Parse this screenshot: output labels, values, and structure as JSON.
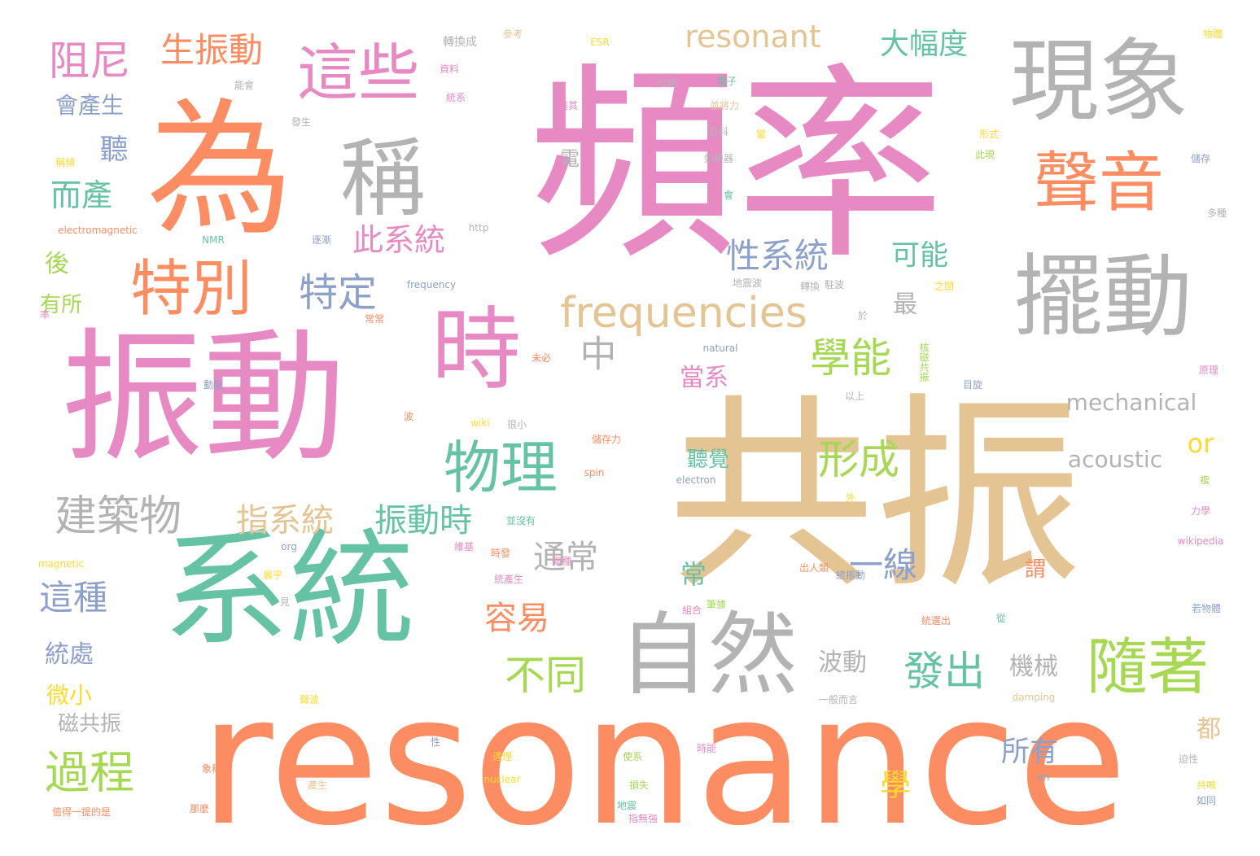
{
  "palette": {
    "pink": "#e78ac3",
    "orange": "#fc8d62",
    "gray": "#b3b3b3",
    "tan": "#e5c494",
    "teal": "#66c2a5",
    "lime": "#a6d854",
    "blue": "#8da0cb",
    "yellow": "#ffd92f"
  },
  "words": [
    {
      "text": "頻率",
      "color": "pink"
    },
    {
      "text": "共振",
      "color": "tan"
    },
    {
      "text": "resonance",
      "color": "orange"
    },
    {
      "text": "振動",
      "color": "pink"
    },
    {
      "text": "系統",
      "color": "teal"
    },
    {
      "text": "為",
      "color": "orange"
    },
    {
      "text": "現象",
      "color": "gray"
    },
    {
      "text": "擺動",
      "color": "gray"
    },
    {
      "text": "自然",
      "color": "gray"
    },
    {
      "text": "時",
      "color": "pink"
    },
    {
      "text": "稱",
      "color": "gray"
    },
    {
      "text": "聲音",
      "color": "orange"
    },
    {
      "text": "這些",
      "color": "pink"
    },
    {
      "text": "隨著",
      "color": "lime"
    },
    {
      "text": "物理",
      "color": "teal"
    },
    {
      "text": "特別",
      "color": "orange"
    },
    {
      "text": "frequencies",
      "color": "tan"
    },
    {
      "text": "建築物",
      "color": "gray"
    },
    {
      "text": "resonant",
      "color": "tan"
    },
    {
      "text": "生振動",
      "color": "orange"
    },
    {
      "text": "阻尼",
      "color": "pink"
    },
    {
      "text": "形成",
      "color": "lime"
    },
    {
      "text": "學能",
      "color": "lime"
    },
    {
      "text": "發出",
      "color": "teal"
    },
    {
      "text": "不同",
      "color": "lime"
    },
    {
      "text": "過程",
      "color": "lime"
    },
    {
      "text": "特定",
      "color": "blue"
    },
    {
      "text": "性系統",
      "color": "blue"
    },
    {
      "text": "指系統",
      "color": "tan"
    },
    {
      "text": "振動時",
      "color": "teal"
    },
    {
      "text": "此系統",
      "color": "pink"
    },
    {
      "text": "大幅度",
      "color": "teal"
    },
    {
      "text": "中",
      "color": "gray"
    },
    {
      "text": "通常",
      "color": "gray"
    },
    {
      "text": "容易",
      "color": "orange"
    },
    {
      "text": "一線",
      "color": "blue"
    },
    {
      "text": "這種",
      "color": "blue"
    },
    {
      "text": "而產",
      "color": "teal"
    },
    {
      "text": "聽",
      "color": "blue"
    },
    {
      "text": "可能",
      "color": "teal"
    },
    {
      "text": "mechanical",
      "color": "gray"
    },
    {
      "text": "acoustic",
      "color": "gray"
    },
    {
      "text": "or",
      "color": "yellow"
    },
    {
      "text": "當系",
      "color": "pink"
    },
    {
      "text": "會產生",
      "color": "blue"
    },
    {
      "text": "統處",
      "color": "blue"
    },
    {
      "text": "微小",
      "color": "yellow"
    },
    {
      "text": "磁共振",
      "color": "gray"
    },
    {
      "text": "波動",
      "color": "gray"
    },
    {
      "text": "機械",
      "color": "gray"
    },
    {
      "text": "所有",
      "color": "blue"
    },
    {
      "text": "學",
      "color": "yellow"
    },
    {
      "text": "常",
      "color": "teal"
    },
    {
      "text": "最",
      "color": "gray"
    },
    {
      "text": "聽覺",
      "color": "teal"
    },
    {
      "text": "後",
      "color": "lime"
    },
    {
      "text": "有所",
      "color": "lime"
    },
    {
      "text": "謂",
      "color": "orange"
    },
    {
      "text": "都",
      "color": "tan"
    },
    {
      "text": "電",
      "color": "gray"
    },
    {
      "text": "轉換成",
      "color": "gray"
    },
    {
      "text": "參考",
      "color": "tan"
    },
    {
      "text": "資料",
      "color": "pink"
    },
    {
      "text": "能會",
      "color": "gray"
    },
    {
      "text": "統系",
      "color": "pink"
    },
    {
      "text": "發生",
      "color": "gray"
    },
    {
      "text": "ESR",
      "color": "yellow"
    },
    {
      "text": "位能",
      "color": "gray"
    },
    {
      "text": "電子",
      "color": "teal"
    },
    {
      "text": "並將力",
      "color": "tan"
    },
    {
      "text": "與其",
      "color": "pink"
    },
    {
      "text": "百科",
      "color": "gray"
    },
    {
      "text": "當",
      "color": "yellow"
    },
    {
      "text": "如樂器",
      "color": "gray"
    },
    {
      "text": "會",
      "color": "teal"
    },
    {
      "text": "形式",
      "color": "yellow"
    },
    {
      "text": "此現",
      "color": "lime"
    },
    {
      "text": "儲存",
      "color": "blue"
    },
    {
      "text": "多種",
      "color": "gray"
    },
    {
      "text": "物體",
      "color": "yellow"
    },
    {
      "text": "稱頻",
      "color": "yellow"
    },
    {
      "text": "electromagnetic",
      "color": "orange"
    },
    {
      "text": "NMR",
      "color": "teal"
    },
    {
      "text": "逐漸",
      "color": "blue"
    },
    {
      "text": "http",
      "color": "gray"
    },
    {
      "text": "frequency",
      "color": "blue"
    },
    {
      "text": "駐波",
      "color": "gray"
    },
    {
      "text": "地震波",
      "color": "gray"
    },
    {
      "text": "轉換",
      "color": "gray"
    },
    {
      "text": "之間",
      "color": "yellow"
    },
    {
      "text": "率",
      "color": "pink"
    },
    {
      "text": "常常",
      "color": "orange"
    },
    {
      "text": "於",
      "color": "gray"
    },
    {
      "text": "natural",
      "color": "blue"
    },
    {
      "text": "未必",
      "color": "orange"
    },
    {
      "text": "核磁共振",
      "color": "lime"
    },
    {
      "text": "動能",
      "color": "blue"
    },
    {
      "text": "目旋",
      "color": "blue"
    },
    {
      "text": "以上",
      "color": "gray"
    },
    {
      "text": "原理",
      "color": "pink"
    },
    {
      "text": "波",
      "color": "orange"
    },
    {
      "text": "wiki",
      "color": "yellow"
    },
    {
      "text": "很小",
      "color": "gray"
    },
    {
      "text": "儲存力",
      "color": "orange"
    },
    {
      "text": "spin",
      "color": "orange"
    },
    {
      "text": "electron",
      "color": "blue"
    },
    {
      "text": "外",
      "color": "yellow"
    },
    {
      "text": "複",
      "color": "lime"
    },
    {
      "text": "力學",
      "color": "pink"
    },
    {
      "text": "並沒有",
      "color": "teal"
    },
    {
      "text": "org",
      "color": "blue"
    },
    {
      "text": "wikipedia",
      "color": "pink"
    },
    {
      "text": "magnetic",
      "color": "yellow"
    },
    {
      "text": "維基",
      "color": "pink"
    },
    {
      "text": "時發",
      "color": "orange"
    },
    {
      "text": "出人類",
      "color": "orange"
    },
    {
      "text": "兩種",
      "color": "pink"
    },
    {
      "text": "統振動",
      "color": "blue"
    },
    {
      "text": "展乎",
      "color": "yellow"
    },
    {
      "text": "統產生",
      "color": "pink"
    },
    {
      "text": "見",
      "color": "gray"
    },
    {
      "text": "組合",
      "color": "pink"
    },
    {
      "text": "筆據",
      "color": "lime"
    },
    {
      "text": "若物體",
      "color": "blue"
    },
    {
      "text": "統選出",
      "color": "orange"
    },
    {
      "text": "從",
      "color": "teal"
    },
    {
      "text": "聲波",
      "color": "yellow"
    },
    {
      "text": "一般而言",
      "color": "gray"
    },
    {
      "text": "damping",
      "color": "tan"
    },
    {
      "text": "性",
      "color": "blue"
    },
    {
      "text": "適理",
      "color": "yellow"
    },
    {
      "text": "使系",
      "color": "lime"
    },
    {
      "text": "時能",
      "color": "pink"
    },
    {
      "text": "迫性",
      "color": "gray"
    },
    {
      "text": "象稱",
      "color": "orange"
    },
    {
      "text": "nuclear",
      "color": "yellow"
    },
    {
      "text": "損失",
      "color": "lime"
    },
    {
      "text": "en",
      "color": "blue"
    },
    {
      "text": "共鳴",
      "color": "yellow"
    },
    {
      "text": "如同",
      "color": "blue"
    },
    {
      "text": "值得一提的是",
      "color": "orange"
    },
    {
      "text": "產生",
      "color": "tan"
    },
    {
      "text": "那麼",
      "color": "orange"
    },
    {
      "text": "地震",
      "color": "teal"
    },
    {
      "text": "指無強",
      "color": "pink"
    }
  ]
}
